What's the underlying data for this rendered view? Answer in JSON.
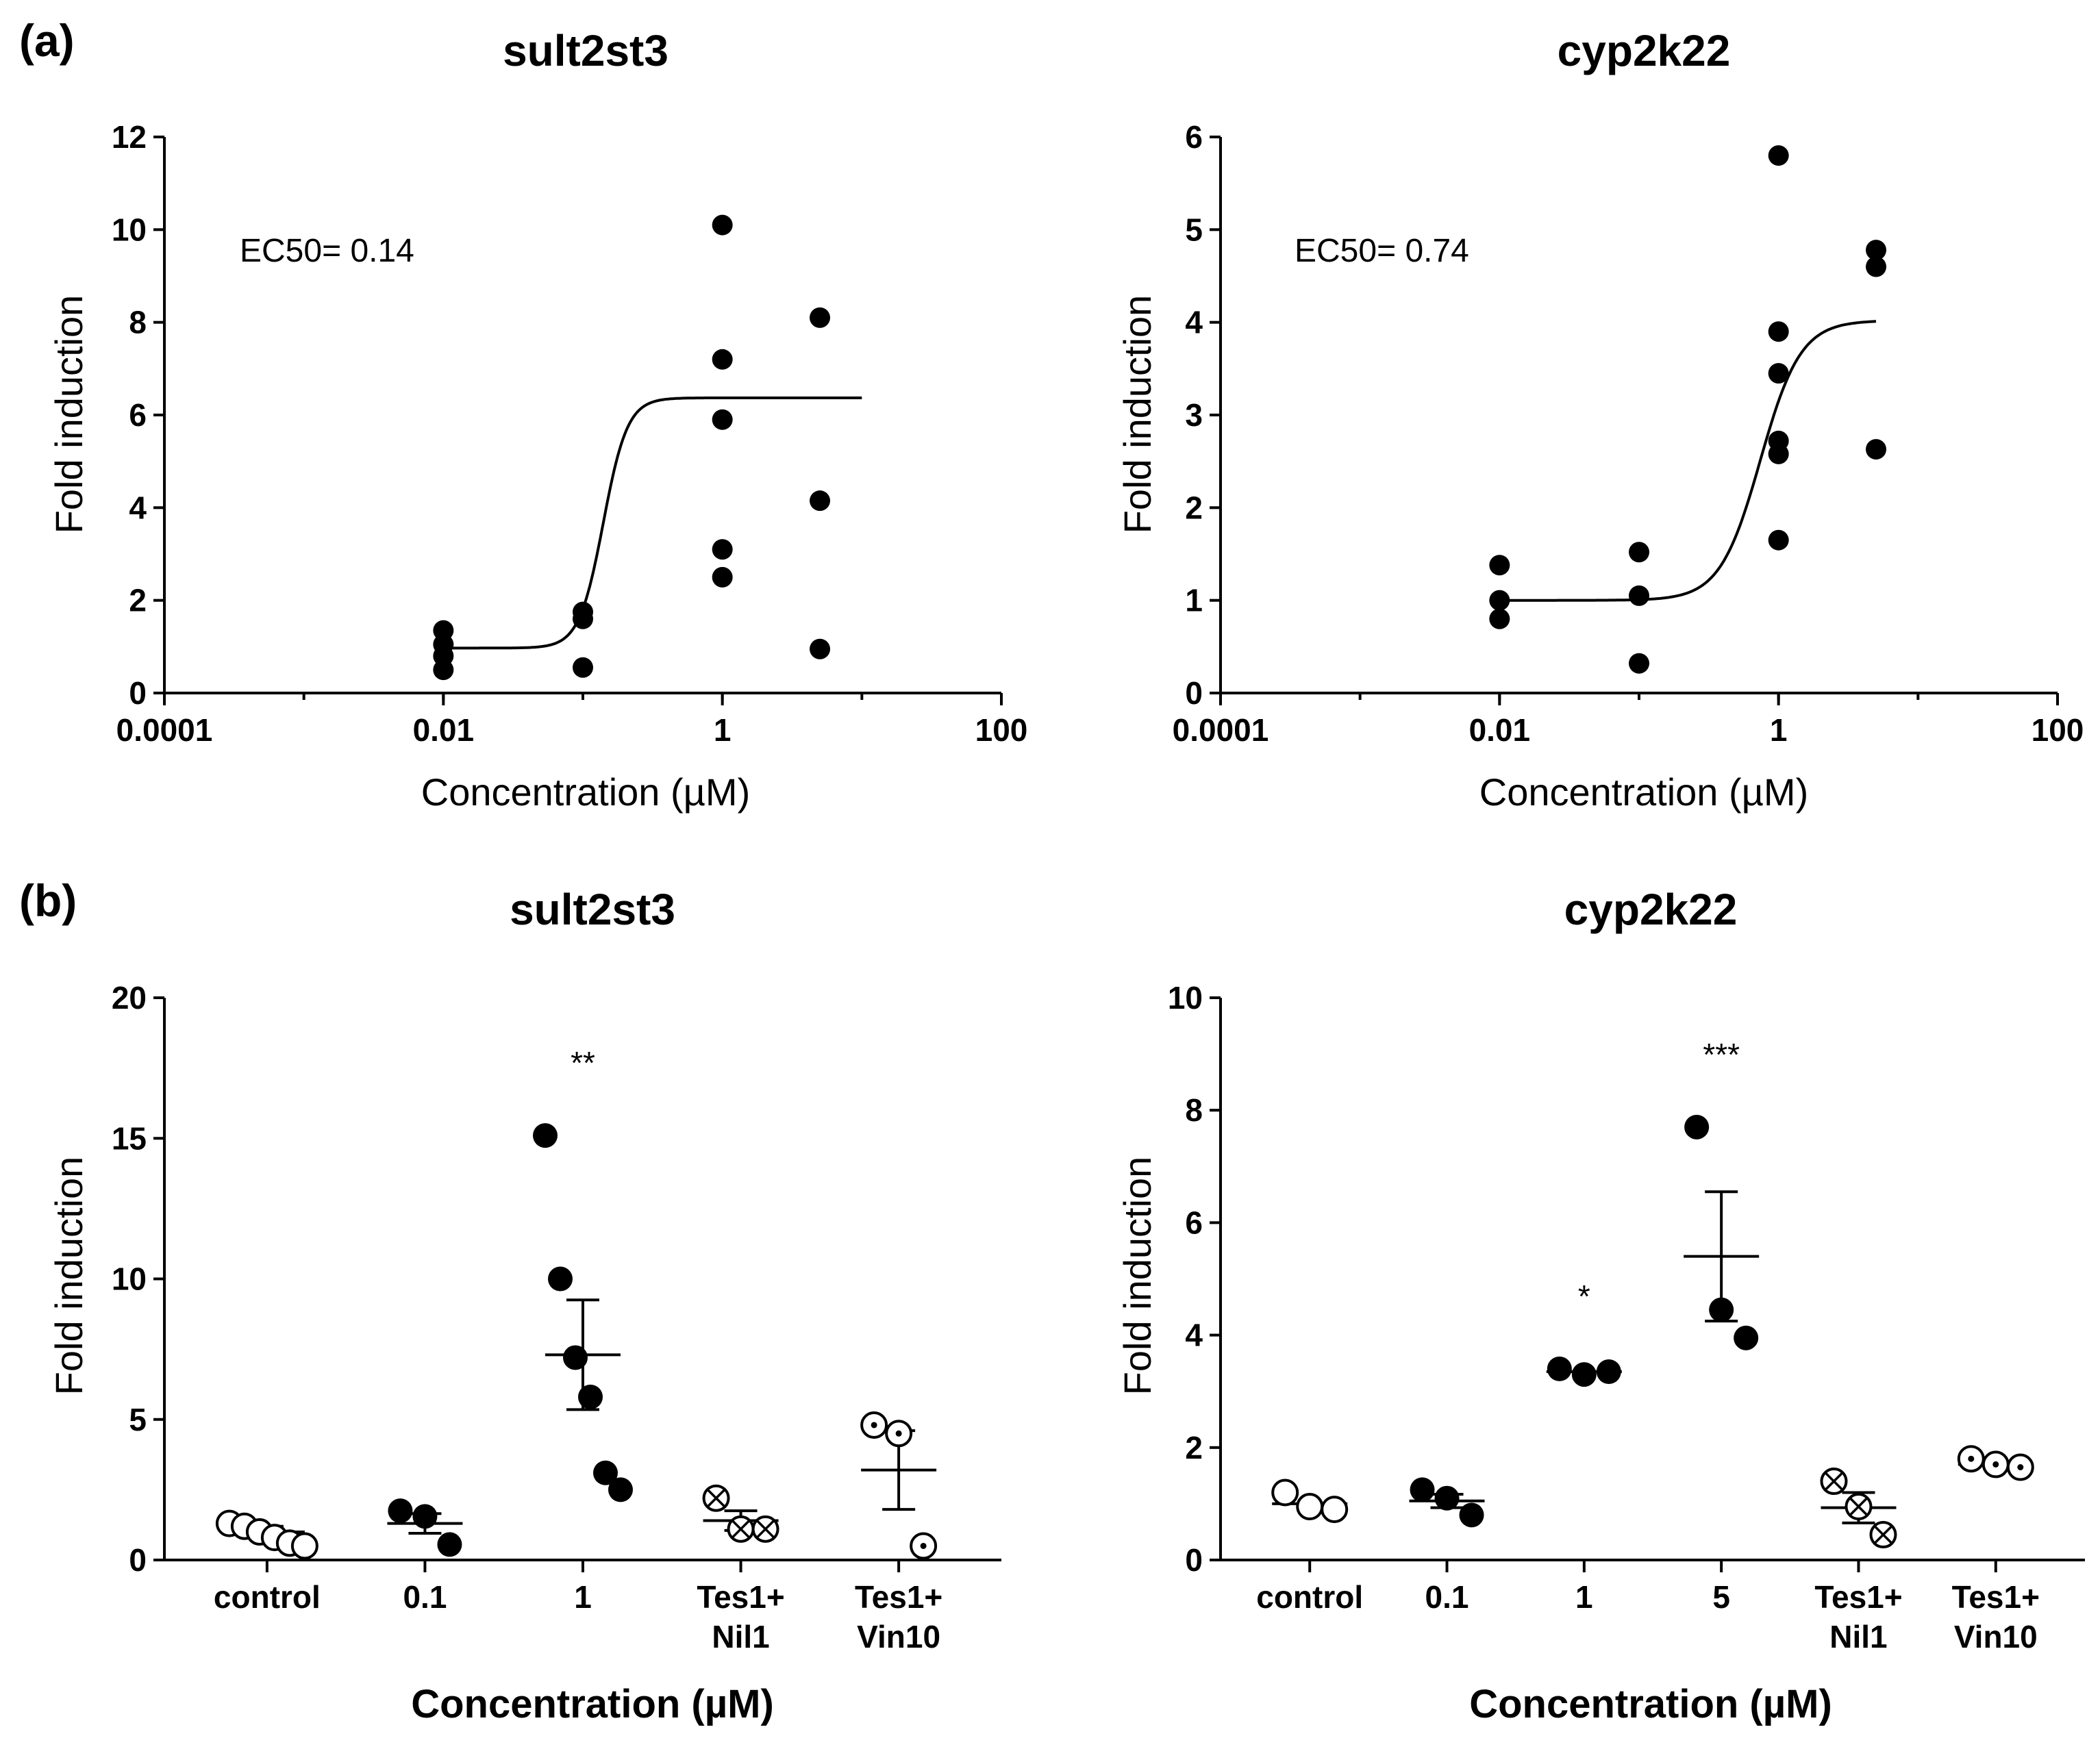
{
  "panel_labels": [
    "(a)",
    "(b)"
  ],
  "chart_data": [
    {
      "id": "a1",
      "type": "scatter",
      "title": "sult2st3",
      "xlabel": "Concentration (µM)",
      "ylabel": "Fold induction",
      "xscale": "log",
      "xlim": [
        0.0001,
        100
      ],
      "ylim": [
        0,
        12
      ],
      "xticks": [
        0.0001,
        0.01,
        1,
        100
      ],
      "xtick_labels": [
        "0.0001",
        "0.01",
        "1",
        "100"
      ],
      "yticks": [
        0,
        2,
        4,
        6,
        8,
        10,
        12
      ],
      "annotation": "EC50= 0.14",
      "ec50": 0.14,
      "points": [
        {
          "x": 0.01,
          "y": 1.35
        },
        {
          "x": 0.01,
          "y": 1.05
        },
        {
          "x": 0.01,
          "y": 0.8
        },
        {
          "x": 0.01,
          "y": 0.5
        },
        {
          "x": 0.1,
          "y": 1.75
        },
        {
          "x": 0.1,
          "y": 1.6
        },
        {
          "x": 0.1,
          "y": 0.55
        },
        {
          "x": 1,
          "y": 10.1
        },
        {
          "x": 1,
          "y": 7.2
        },
        {
          "x": 1,
          "y": 5.9
        },
        {
          "x": 1,
          "y": 3.1
        },
        {
          "x": 1,
          "y": 2.5
        },
        {
          "x": 5,
          "y": 8.1
        },
        {
          "x": 5,
          "y": 4.15
        },
        {
          "x": 5,
          "y": 0.95
        }
      ],
      "fit": {
        "bottom": 0.97,
        "top": 6.37,
        "ec50": 0.14,
        "hill": 5,
        "x_range": [
          0.01,
          10
        ]
      }
    },
    {
      "id": "a2",
      "type": "scatter",
      "title": "cyp2k22",
      "xlabel": "Concentration (µM)",
      "ylabel": "Fold induction",
      "xscale": "log",
      "xlim": [
        0.0001,
        100
      ],
      "ylim": [
        0,
        6
      ],
      "xticks": [
        0.0001,
        0.01,
        1,
        100
      ],
      "xtick_labels": [
        "0.0001",
        "0.01",
        "1",
        "100"
      ],
      "yticks": [
        0,
        1,
        2,
        3,
        4,
        5,
        6
      ],
      "annotation": "EC50= 0.74",
      "ec50": 0.74,
      "points": [
        {
          "x": 0.01,
          "y": 1.38
        },
        {
          "x": 0.01,
          "y": 1.0
        },
        {
          "x": 0.01,
          "y": 0.8
        },
        {
          "x": 0.1,
          "y": 1.52
        },
        {
          "x": 0.1,
          "y": 1.05
        },
        {
          "x": 0.1,
          "y": 0.32
        },
        {
          "x": 1,
          "y": 5.8
        },
        {
          "x": 1,
          "y": 3.9
        },
        {
          "x": 1,
          "y": 3.45
        },
        {
          "x": 1,
          "y": 2.72
        },
        {
          "x": 1,
          "y": 2.58
        },
        {
          "x": 1,
          "y": 1.65
        },
        {
          "x": 5,
          "y": 4.78
        },
        {
          "x": 5,
          "y": 4.6
        },
        {
          "x": 5,
          "y": 2.63
        }
      ],
      "fit": {
        "bottom": 1.0,
        "top": 4.02,
        "ec50": 0.74,
        "hill": 3,
        "x_range": [
          0.01,
          5
        ]
      }
    },
    {
      "id": "b1",
      "type": "scatter",
      "title": "sult2st3",
      "xlabel": "Concentration (µM)",
      "ylabel": "Fold induction",
      "ylim": [
        0,
        20
      ],
      "yticks": [
        0,
        5,
        10,
        15,
        20
      ],
      "categories": [
        {
          "label": [
            "control"
          ],
          "marker": "open",
          "mean": 1.0,
          "sem": 0.2,
          "values": [
            1.3,
            1.2,
            1.0,
            0.8,
            0.6,
            0.5
          ],
          "significance": ""
        },
        {
          "label": [
            "0.1"
          ],
          "marker": "filled",
          "mean": 1.3,
          "sem": 0.35,
          "values": [
            1.75,
            1.55,
            0.55
          ],
          "significance": ""
        },
        {
          "label": [
            "1"
          ],
          "marker": "filled",
          "mean": 7.3,
          "sem": 1.95,
          "values": [
            15.1,
            10.0,
            7.2,
            5.8,
            3.1,
            2.5
          ],
          "significance": "**"
        },
        {
          "label": [
            "Tes1+",
            "Nil1"
          ],
          "marker": "cross",
          "mean": 1.4,
          "sem": 0.35,
          "values": [
            2.2,
            1.1,
            1.1
          ],
          "significance": ""
        },
        {
          "label": [
            "Tes1+",
            "Vin10"
          ],
          "marker": "dot",
          "mean": 3.2,
          "sem": 1.4,
          "values": [
            4.8,
            4.5,
            0.5
          ],
          "significance": ""
        }
      ]
    },
    {
      "id": "b2",
      "type": "scatter",
      "title": "cyp2k22",
      "xlabel": "Concentration (µM)",
      "ylabel": "Fold induction",
      "ylim": [
        0,
        10
      ],
      "yticks": [
        0,
        2,
        4,
        6,
        8,
        10
      ],
      "categories": [
        {
          "label": [
            "control"
          ],
          "marker": "open",
          "mean": 1.0,
          "sem": 0.0,
          "values": [
            1.2,
            0.95,
            0.9
          ],
          "significance": ""
        },
        {
          "label": [
            "0.1"
          ],
          "marker": "filled",
          "mean": 1.05,
          "sem": 0.12,
          "values": [
            1.25,
            1.1,
            0.8
          ],
          "significance": ""
        },
        {
          "label": [
            "1"
          ],
          "marker": "filled",
          "mean": 3.35,
          "sem": 0.0,
          "values": [
            3.4,
            3.3,
            3.35
          ],
          "significance": "*"
        },
        {
          "label": [
            "5"
          ],
          "marker": "filled",
          "mean": 5.4,
          "sem": 1.15,
          "values": [
            7.7,
            4.45,
            3.95
          ],
          "significance": "***"
        },
        {
          "label": [
            "Tes1+",
            "Nil1"
          ],
          "marker": "cross",
          "mean": 0.93,
          "sem": 0.27,
          "values": [
            1.4,
            0.95,
            0.45
          ],
          "significance": ""
        },
        {
          "label": [
            "Tes1+",
            "Vin10"
          ],
          "marker": "dot",
          "mean": 1.7,
          "sem": 0.0,
          "values": [
            1.8,
            1.7,
            1.65
          ],
          "significance": ""
        }
      ]
    }
  ]
}
